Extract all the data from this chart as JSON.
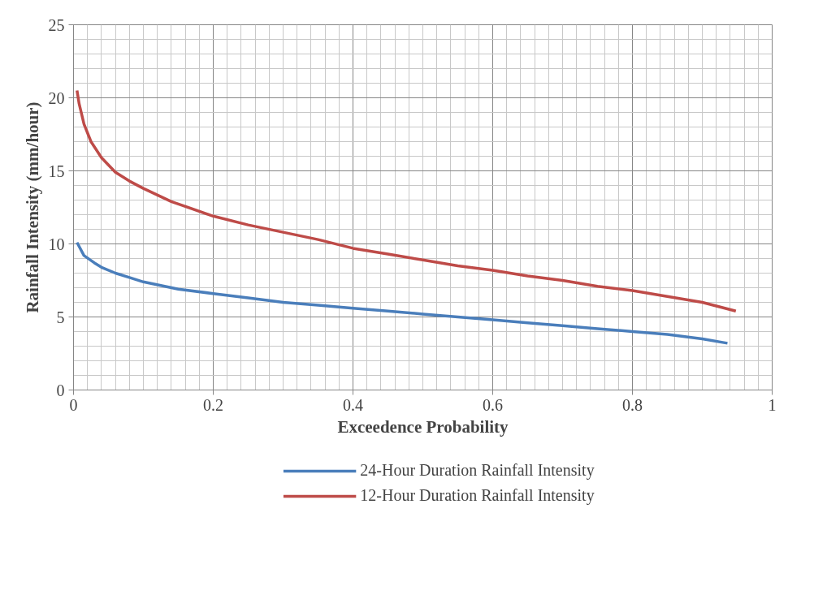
{
  "chart_data": {
    "type": "line",
    "xlabel": "Exceedence Probability",
    "ylabel": "Rainfall Intensity (mm/hour)",
    "xlim": [
      0,
      1
    ],
    "ylim": [
      0,
      25
    ],
    "xticks": [
      0,
      0.2,
      0.4,
      0.6,
      0.8,
      1
    ],
    "yticks": [
      0,
      5,
      10,
      15,
      20,
      25
    ],
    "grid": true,
    "legend": "bottom",
    "marker": "none",
    "line_style": "solid",
    "series": [
      {
        "name": "24-Hour Duration Rainfall Intensity",
        "color": "#4a7ebb",
        "x": [
          0.005,
          0.015,
          0.03,
          0.04,
          0.06,
          0.08,
          0.1,
          0.15,
          0.2,
          0.25,
          0.3,
          0.35,
          0.4,
          0.45,
          0.5,
          0.55,
          0.6,
          0.65,
          0.7,
          0.75,
          0.8,
          0.85,
          0.9,
          0.936
        ],
        "values": [
          10.1,
          9.2,
          8.7,
          8.4,
          8.0,
          7.7,
          7.4,
          6.9,
          6.6,
          6.3,
          6.0,
          5.8,
          5.6,
          5.4,
          5.2,
          5.0,
          4.8,
          4.6,
          4.4,
          4.2,
          4.0,
          3.8,
          3.5,
          3.2
        ]
      },
      {
        "name": "12-Hour Duration Rainfall Intensity",
        "color": "#be4b48",
        "x": [
          0.005,
          0.008,
          0.015,
          0.025,
          0.04,
          0.06,
          0.08,
          0.1,
          0.14,
          0.2,
          0.25,
          0.3,
          0.35,
          0.4,
          0.45,
          0.5,
          0.55,
          0.6,
          0.65,
          0.7,
          0.75,
          0.8,
          0.85,
          0.9,
          0.948
        ],
        "values": [
          20.5,
          19.6,
          18.2,
          17.0,
          15.9,
          14.9,
          14.3,
          13.8,
          12.9,
          11.9,
          11.3,
          10.8,
          10.3,
          9.7,
          9.3,
          8.9,
          8.5,
          8.2,
          7.8,
          7.5,
          7.1,
          6.8,
          6.4,
          6.0,
          5.4
        ]
      }
    ]
  }
}
